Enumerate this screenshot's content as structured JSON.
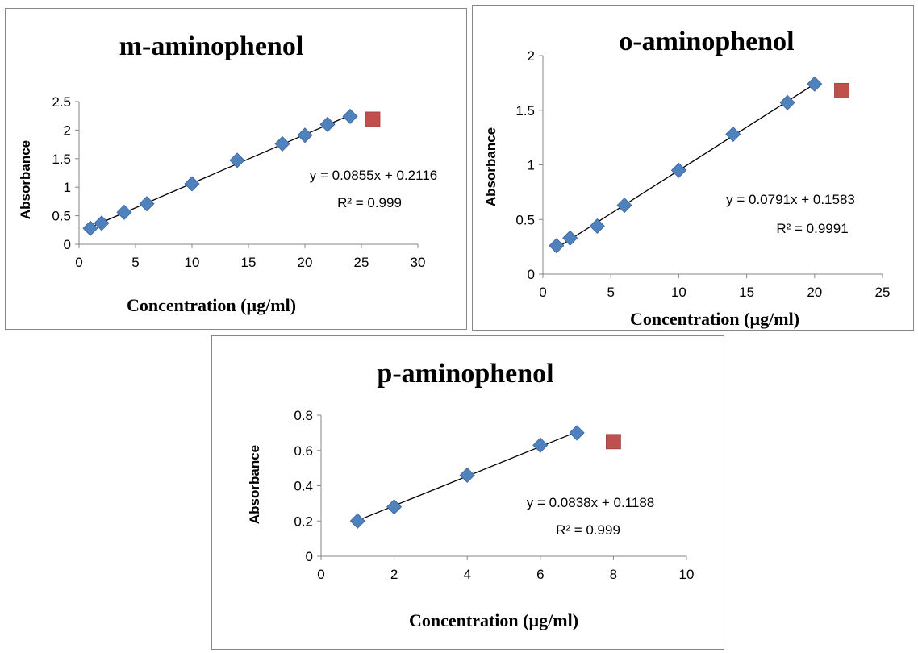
{
  "chart_data": [
    {
      "type": "scatter",
      "title": "m-aminophenol",
      "xlabel": "Concentration (µg/ml)",
      "ylabel": "Absorbance",
      "xlim": [
        0,
        30
      ],
      "ylim": [
        0,
        2.5
      ],
      "xticks": [
        "0",
        "5",
        "10",
        "15",
        "20",
        "25",
        "30"
      ],
      "yticks": [
        "0",
        "0.5",
        "1",
        "1.5",
        "2",
        "2.5"
      ],
      "series": [
        {
          "x": [
            1,
            2,
            4,
            6,
            10,
            14,
            18,
            20,
            22,
            24
          ],
          "y": [
            0.28,
            0.37,
            0.56,
            0.71,
            1.06,
            1.47,
            1.76,
            1.91,
            2.1,
            2.24
          ],
          "marker": "diamond",
          "color": "#4f81bd"
        },
        {
          "x": [
            26
          ],
          "y": [
            2.19
          ],
          "marker": "square",
          "color": "#c0504d"
        }
      ],
      "trendline": {
        "slope": 0.0855,
        "intercept": 0.2116,
        "x_range": [
          1,
          24
        ]
      },
      "equation": "y = 0.0855x + 0.2116",
      "r2": "R² = 0.999"
    },
    {
      "type": "scatter",
      "title": "o-aminophenol",
      "xlabel": "Concentration (µg/ml)",
      "ylabel": "Absorbance",
      "xlim": [
        0,
        25
      ],
      "ylim": [
        0,
        2
      ],
      "xticks": [
        "0",
        "5",
        "10",
        "15",
        "20",
        "25"
      ],
      "yticks": [
        "0",
        "0.5",
        "1",
        "1.5",
        "2"
      ],
      "series": [
        {
          "x": [
            1,
            2,
            4,
            6,
            10,
            14,
            18,
            20
          ],
          "y": [
            0.26,
            0.33,
            0.44,
            0.63,
            0.95,
            1.28,
            1.57,
            1.74
          ],
          "marker": "diamond",
          "color": "#4f81bd"
        },
        {
          "x": [
            22
          ],
          "y": [
            1.68
          ],
          "marker": "square",
          "color": "#c0504d"
        }
      ],
      "trendline": {
        "slope": 0.0791,
        "intercept": 0.1583,
        "x_range": [
          1,
          20
        ]
      },
      "equation": "y = 0.0791x + 0.1583",
      "r2": "R² = 0.9991"
    },
    {
      "type": "scatter",
      "title": "p-aminophenol",
      "xlabel": "Concentration (µg/ml)",
      "ylabel": "Absorbance",
      "xlim": [
        0,
        10
      ],
      "ylim": [
        0,
        0.8
      ],
      "xticks": [
        "0",
        "2",
        "4",
        "6",
        "8",
        "10"
      ],
      "yticks": [
        "0",
        "0.2",
        "0.4",
        "0.6",
        "0.8"
      ],
      "series": [
        {
          "x": [
            1,
            2,
            4,
            6,
            7
          ],
          "y": [
            0.2,
            0.28,
            0.46,
            0.63,
            0.7
          ],
          "marker": "diamond",
          "color": "#4f81bd"
        },
        {
          "x": [
            8
          ],
          "y": [
            0.65
          ],
          "marker": "square",
          "color": "#c0504d"
        }
      ],
      "trendline": {
        "slope": 0.0838,
        "intercept": 0.1188,
        "x_range": [
          1,
          7
        ]
      },
      "equation": "y = 0.0838x + 0.1188",
      "r2": "R² = 0.999"
    }
  ]
}
